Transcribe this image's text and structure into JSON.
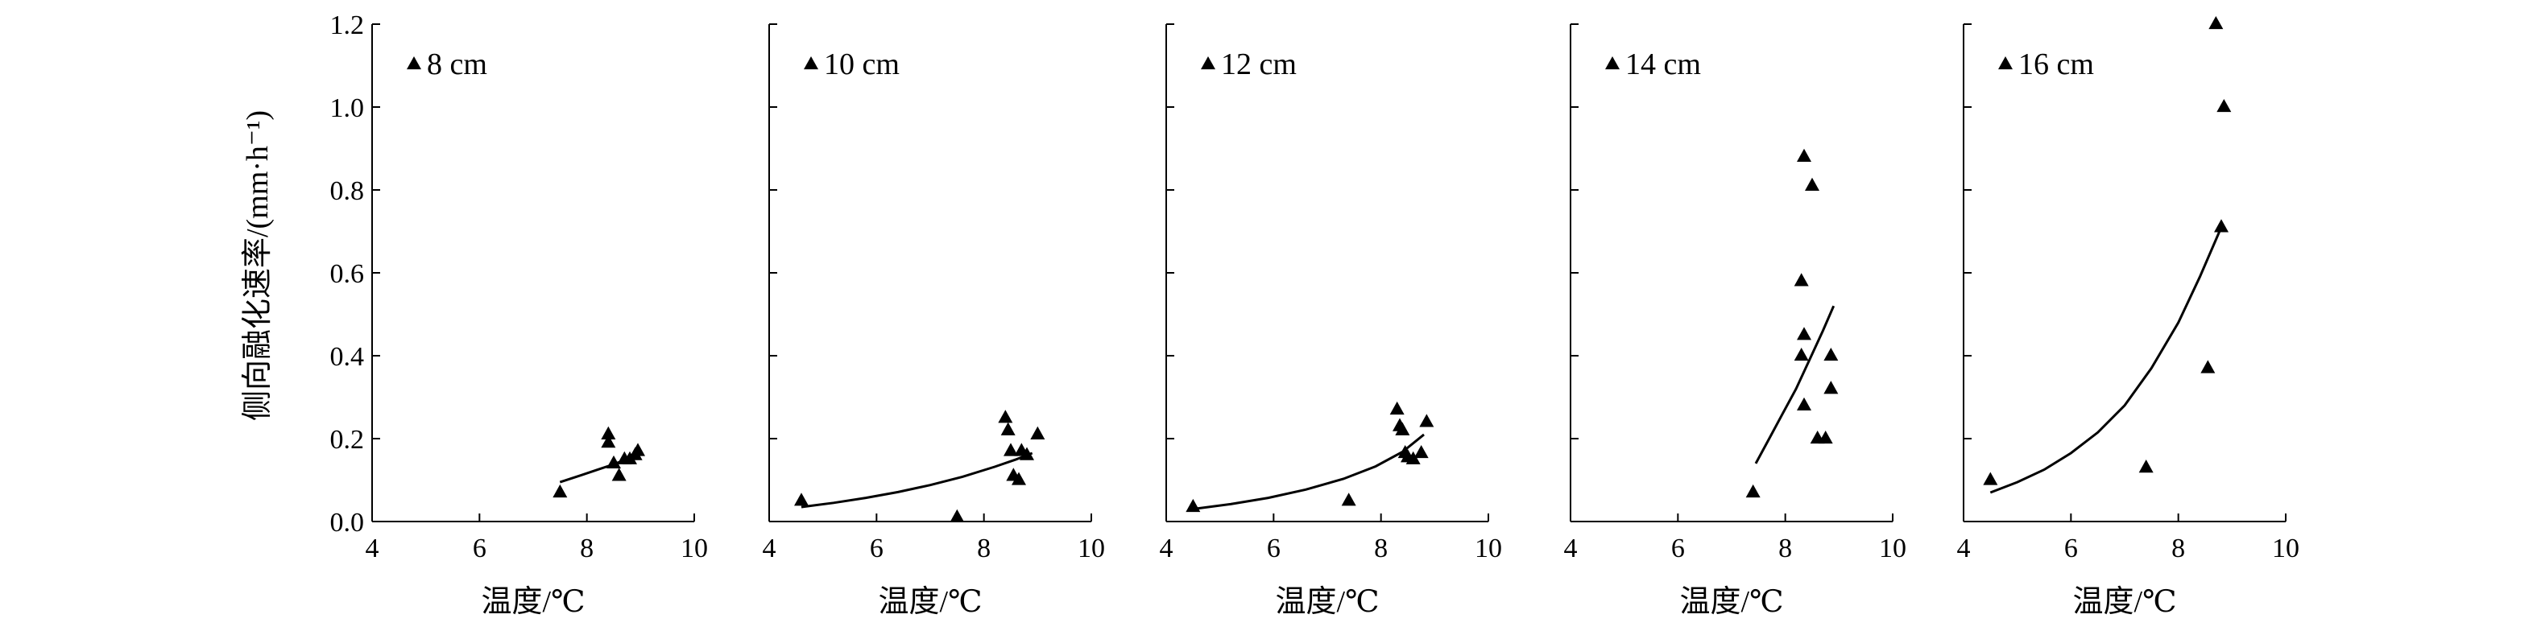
{
  "figure": {
    "y_axis_label": "侧向融化速率/(mm·h⁻¹)",
    "x_axis_label": "温度/℃"
  },
  "chart_data": [
    {
      "type": "scatter",
      "legend": "8 cm",
      "xlabel": "温度/℃",
      "ylabel": "侧向融化速率/(mm·h⁻¹)",
      "xlim": [
        4,
        10
      ],
      "ylim": [
        0,
        1.2
      ],
      "xticks": [
        4,
        6,
        8,
        10
      ],
      "yticks": [
        0.0,
        0.2,
        0.4,
        0.6,
        0.8,
        1.0,
        1.2
      ],
      "marker": "triangle",
      "points": [
        [
          7.5,
          0.07
        ],
        [
          8.4,
          0.21
        ],
        [
          8.4,
          0.19
        ],
        [
          8.5,
          0.14
        ],
        [
          8.6,
          0.11
        ],
        [
          8.7,
          0.15
        ],
        [
          8.8,
          0.15
        ],
        [
          8.9,
          0.16
        ],
        [
          8.95,
          0.17
        ]
      ],
      "fit": [
        [
          7.5,
          0.095
        ],
        [
          7.9,
          0.112
        ],
        [
          8.2,
          0.125
        ],
        [
          8.5,
          0.138
        ],
        [
          8.8,
          0.153
        ],
        [
          9.0,
          0.165
        ]
      ]
    },
    {
      "type": "scatter",
      "legend": "10 cm",
      "xlabel": "温度/℃",
      "ylabel": "",
      "xlim": [
        4,
        10
      ],
      "ylim": [
        0,
        1.2
      ],
      "xticks": [
        4,
        6,
        8,
        10
      ],
      "yticks": [
        0.0,
        0.2,
        0.4,
        0.6,
        0.8,
        1.0,
        1.2
      ],
      "marker": "triangle",
      "points": [
        [
          4.6,
          0.05
        ],
        [
          7.5,
          0.01
        ],
        [
          8.4,
          0.25
        ],
        [
          8.45,
          0.22
        ],
        [
          8.5,
          0.17
        ],
        [
          8.55,
          0.11
        ],
        [
          8.65,
          0.1
        ],
        [
          8.7,
          0.17
        ],
        [
          8.8,
          0.16
        ],
        [
          9.0,
          0.21
        ]
      ],
      "fit": [
        [
          4.6,
          0.035
        ],
        [
          5.2,
          0.045
        ],
        [
          5.8,
          0.057
        ],
        [
          6.4,
          0.071
        ],
        [
          7.0,
          0.088
        ],
        [
          7.6,
          0.108
        ],
        [
          8.2,
          0.132
        ],
        [
          8.6,
          0.15
        ],
        [
          8.9,
          0.165
        ]
      ]
    },
    {
      "type": "scatter",
      "legend": "12 cm",
      "xlabel": "温度/℃",
      "ylabel": "",
      "xlim": [
        4,
        10
      ],
      "ylim": [
        0,
        1.2
      ],
      "xticks": [
        4,
        6,
        8,
        10
      ],
      "yticks": [
        0.0,
        0.2,
        0.4,
        0.6,
        0.8,
        1.0,
        1.2
      ],
      "marker": "triangle",
      "points": [
        [
          4.5,
          0.035
        ],
        [
          7.4,
          0.05
        ],
        [
          8.3,
          0.27
        ],
        [
          8.35,
          0.23
        ],
        [
          8.4,
          0.22
        ],
        [
          8.45,
          0.165
        ],
        [
          8.5,
          0.155
        ],
        [
          8.6,
          0.15
        ],
        [
          8.75,
          0.165
        ],
        [
          8.85,
          0.24
        ]
      ],
      "fit": [
        [
          4.5,
          0.03
        ],
        [
          5.2,
          0.042
        ],
        [
          5.9,
          0.057
        ],
        [
          6.6,
          0.077
        ],
        [
          7.3,
          0.103
        ],
        [
          7.9,
          0.133
        ],
        [
          8.4,
          0.168
        ],
        [
          8.8,
          0.21
        ]
      ]
    },
    {
      "type": "scatter",
      "legend": "14 cm",
      "xlabel": "温度/℃",
      "ylabel": "",
      "xlim": [
        4,
        10
      ],
      "ylim": [
        0,
        1.2
      ],
      "xticks": [
        4,
        6,
        8,
        10
      ],
      "yticks": [
        0.0,
        0.2,
        0.4,
        0.6,
        0.8,
        1.0,
        1.2
      ],
      "marker": "triangle",
      "points": [
        [
          7.4,
          0.07
        ],
        [
          8.35,
          0.88
        ],
        [
          8.5,
          0.81
        ],
        [
          8.3,
          0.58
        ],
        [
          8.35,
          0.45
        ],
        [
          8.3,
          0.4
        ],
        [
          8.35,
          0.28
        ],
        [
          8.6,
          0.2
        ],
        [
          8.75,
          0.2
        ],
        [
          8.85,
          0.32
        ],
        [
          8.85,
          0.4
        ]
      ],
      "fit": [
        [
          7.45,
          0.14
        ],
        [
          7.7,
          0.2
        ],
        [
          7.95,
          0.26
        ],
        [
          8.2,
          0.32
        ],
        [
          8.45,
          0.39
        ],
        [
          8.7,
          0.46
        ],
        [
          8.9,
          0.52
        ]
      ]
    },
    {
      "type": "scatter",
      "legend": "16 cm",
      "xlabel": "温度/℃",
      "ylabel": "",
      "xlim": [
        4,
        10
      ],
      "ylim": [
        0,
        1.2
      ],
      "xticks": [
        4,
        6,
        8,
        10
      ],
      "yticks": [
        0.0,
        0.2,
        0.4,
        0.6,
        0.8,
        1.0,
        1.2
      ],
      "marker": "triangle",
      "points": [
        [
          4.5,
          0.1
        ],
        [
          7.4,
          0.13
        ],
        [
          8.55,
          0.37
        ],
        [
          8.7,
          1.2
        ],
        [
          8.8,
          0.71
        ],
        [
          8.85,
          1.0
        ]
      ],
      "fit": [
        [
          4.5,
          0.07
        ],
        [
          5.0,
          0.095
        ],
        [
          5.5,
          0.125
        ],
        [
          6.0,
          0.165
        ],
        [
          6.5,
          0.215
        ],
        [
          7.0,
          0.28
        ],
        [
          7.5,
          0.37
        ],
        [
          8.0,
          0.48
        ],
        [
          8.4,
          0.59
        ],
        [
          8.8,
          0.71
        ]
      ]
    }
  ]
}
